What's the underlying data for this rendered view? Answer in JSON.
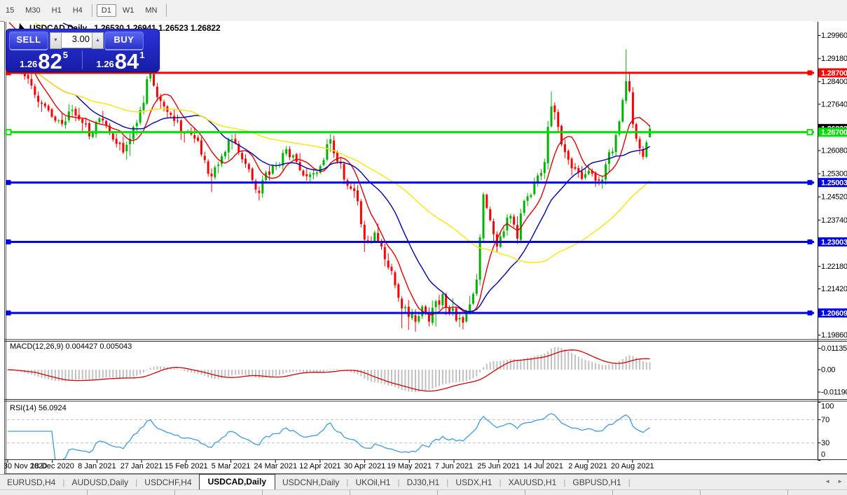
{
  "toolbar": {
    "periods": [
      "15",
      "M30",
      "H1",
      "H4",
      "D1",
      "W1",
      "MN"
    ],
    "active_period": "D1"
  },
  "chart_header": {
    "symbol": "USDCAD,Daily",
    "ohlc_text": "1.26530 1.26941 1.26523 1.26822"
  },
  "trade_panel": {
    "sell_label": "SELL",
    "buy_label": "BUY",
    "volume": "3.00",
    "sell_price": {
      "small": "1.26",
      "big": "82",
      "sup": "5"
    },
    "buy_price": {
      "small": "1.26",
      "big": "84",
      "sup": "1"
    }
  },
  "icons": {
    "volume_down": "▼",
    "volume_up": "▲",
    "tab_scroll_left": "◄",
    "tab_scroll_right": "►"
  },
  "panels": {
    "macd_title": "MACD(12,26,9) 0.004427 0.005043",
    "rsi_title": "RSI(14) 56.0924"
  },
  "tabs": {
    "items": [
      "EURUSD,H4",
      "AUDUSD,Daily",
      "USDCHF,H4",
      "USDCAD,Daily",
      "USDCNH,Daily",
      "UKOil,H1",
      "DJ30,H1",
      "USDX,H1",
      "XAUUSD,H1",
      "GBPUSD,H1"
    ],
    "active": "USDCAD,Daily"
  },
  "chart_data": {
    "type": "candlestick",
    "symbol": "USDCAD",
    "timeframe": "Daily",
    "ohlc_current": {
      "open": 1.2653,
      "high": 1.26941,
      "low": 1.26523,
      "close": 1.26822
    },
    "bars": 190,
    "price_range": [
      1.19736,
      1.30375
    ],
    "seed": 1367,
    "volatility": 0.0015,
    "candle_up_color": "#00B200",
    "candle_down_color": "#FF0000",
    "close_anchors": [
      [
        0,
        1.2958
      ],
      [
        2,
        1.292
      ],
      [
        4,
        1.287
      ],
      [
        7,
        1.2825
      ],
      [
        9,
        1.277
      ],
      [
        12,
        1.2745
      ],
      [
        14,
        1.2715
      ],
      [
        16,
        1.269
      ],
      [
        18,
        1.274
      ],
      [
        20,
        1.2725
      ],
      [
        22,
        1.269
      ],
      [
        24,
        1.2668
      ],
      [
        26,
        1.27
      ],
      [
        28,
        1.2712
      ],
      [
        30,
        1.2672
      ],
      [
        32,
        1.264
      ],
      [
        34,
        1.2615
      ],
      [
        36,
        1.265
      ],
      [
        38,
        1.2705
      ],
      [
        40,
        1.277
      ],
      [
        41,
        1.284
      ],
      [
        42,
        1.2858
      ],
      [
        44,
        1.2795
      ],
      [
        46,
        1.2762
      ],
      [
        48,
        1.2725
      ],
      [
        50,
        1.2695
      ],
      [
        52,
        1.2672
      ],
      [
        54,
        1.266
      ],
      [
        56,
        1.2625
      ],
      [
        58,
        1.2575
      ],
      [
        60,
        1.252
      ],
      [
        62,
        1.2555
      ],
      [
        64,
        1.261
      ],
      [
        66,
        1.265
      ],
      [
        68,
        1.2605
      ],
      [
        70,
        1.2565
      ],
      [
        72,
        1.251
      ],
      [
        74,
        1.2475
      ],
      [
        76,
        1.2518
      ],
      [
        78,
        1.2552
      ],
      [
        80,
        1.2575
      ],
      [
        82,
        1.2615
      ],
      [
        84,
        1.258
      ],
      [
        86,
        1.2542
      ],
      [
        88,
        1.2522
      ],
      [
        90,
        1.2538
      ],
      [
        92,
        1.2548
      ],
      [
        94,
        1.2618
      ],
      [
        95,
        1.2632
      ],
      [
        97,
        1.2575
      ],
      [
        99,
        1.2518
      ],
      [
        101,
        1.2482
      ],
      [
        103,
        1.244
      ],
      [
        105,
        1.231
      ],
      [
        106,
        1.2285
      ],
      [
        108,
        1.233
      ],
      [
        110,
        1.229
      ],
      [
        112,
        1.2218
      ],
      [
        114,
        1.215
      ],
      [
        116,
        1.2095
      ],
      [
        118,
        1.2062
      ],
      [
        120,
        1.2035
      ],
      [
        122,
        1.2072
      ],
      [
        124,
        1.2048
      ],
      [
        126,
        1.2085
      ],
      [
        128,
        1.2108
      ],
      [
        130,
        1.2075
      ],
      [
        132,
        1.2052
      ],
      [
        134,
        1.2038
      ],
      [
        136,
        1.2075
      ],
      [
        138,
        1.216
      ],
      [
        139,
        1.2305
      ],
      [
        140,
        1.2465
      ],
      [
        142,
        1.2372
      ],
      [
        144,
        1.23
      ],
      [
        146,
        1.2345
      ],
      [
        148,
        1.2395
      ],
      [
        150,
        1.233
      ],
      [
        152,
        1.2445
      ],
      [
        154,
        1.246
      ],
      [
        156,
        1.2515
      ],
      [
        158,
        1.2562
      ],
      [
        159,
        1.268
      ],
      [
        160,
        1.2758
      ],
      [
        161,
        1.272
      ],
      [
        163,
        1.2625
      ],
      [
        165,
        1.2572
      ],
      [
        167,
        1.2545
      ],
      [
        169,
        1.251
      ],
      [
        171,
        1.2532
      ],
      [
        173,
        1.2512
      ],
      [
        175,
        1.252
      ],
      [
        177,
        1.2585
      ],
      [
        179,
        1.2648
      ],
      [
        180,
        1.2698
      ],
      [
        181,
        1.2782
      ],
      [
        182,
        1.2845
      ],
      [
        183,
        1.2818
      ],
      [
        184,
        1.2695
      ],
      [
        185,
        1.2648
      ],
      [
        186,
        1.262
      ],
      [
        187,
        1.2595
      ],
      [
        188,
        1.2645
      ],
      [
        189,
        1.2682
      ]
    ],
    "special_highs": {
      "42": 1.2882,
      "160": 1.2807,
      "182": 1.2949,
      "183": 1.2872
    },
    "special_lows": {
      "36": 1.259,
      "60": 1.2468,
      "74": 1.244,
      "105": 1.2266,
      "116": 1.201,
      "118": 1.2004,
      "120": 1.1998,
      "126": 1.2015,
      "134": 1.2006
    },
    "moving_averages": [
      {
        "period": 8,
        "color": "#DD0000"
      },
      {
        "period": 21,
        "color": "#0000A8"
      },
      {
        "period": 55,
        "color": "#FFE400"
      }
    ],
    "hlines": [
      {
        "price": 1.287,
        "tag": "1.28700",
        "color": "#FF0000",
        "handle": "solid"
      },
      {
        "price": 1.267,
        "tag": "1.26700",
        "color": "#00DD00",
        "handle": "hollow"
      },
      {
        "price": 1.25003,
        "tag": "1.25003",
        "color": "#0000E6",
        "handle": "solid"
      },
      {
        "price": 1.23003,
        "tag": "1.23003",
        "color": "#0000E6",
        "handle": "solid"
      },
      {
        "price": 1.20609,
        "tag": "1.20609",
        "color": "#0000E6",
        "handle": "solid"
      }
    ],
    "current_price_tag": {
      "price": 1.26822,
      "label": "1.26822",
      "color": "#000000"
    },
    "y_ticks": [
      "1.29960",
      "1.29180",
      "1.28400",
      "1.27640",
      "1.26860",
      "1.26080",
      "1.25300",
      "1.24520",
      "1.23740",
      "1.22960",
      "1.22180",
      "1.21420",
      "1.20640",
      "1.19860"
    ],
    "x_labels": [
      "30 Nov 2020",
      "18 Dec 2020",
      "8 Jan 2021",
      "27 Jan 2021",
      "15 Feb 2021",
      "5 Mar 2021",
      "24 Mar 2021",
      "12 Apr 2021",
      "30 Apr 2021",
      "19 May 2021",
      "7 Jun 2021",
      "25 Jun 2021",
      "14 Jul 2021",
      "2 Aug 2021",
      "20 Aug 2021"
    ],
    "macd": {
      "fast": 12,
      "slow": 26,
      "signal": 9,
      "axis_labels": [
        "0.01135",
        "0.00",
        "-0.01190"
      ],
      "axis_values": [
        0.01135,
        0.0,
        -0.0119
      ],
      "range": [
        -0.01487,
        0.01413
      ],
      "hist_color": "#C0C0C0",
      "line_color": "#D40000"
    },
    "rsi": {
      "period": 14,
      "value": 56.0924,
      "axis_labels": [
        "100",
        "70",
        "30",
        "0"
      ],
      "axis_values": [
        100,
        70,
        30,
        0
      ],
      "levels": [
        70,
        30
      ],
      "level_color": "#C0C0C0",
      "line_color": "#3E9BE0"
    }
  }
}
